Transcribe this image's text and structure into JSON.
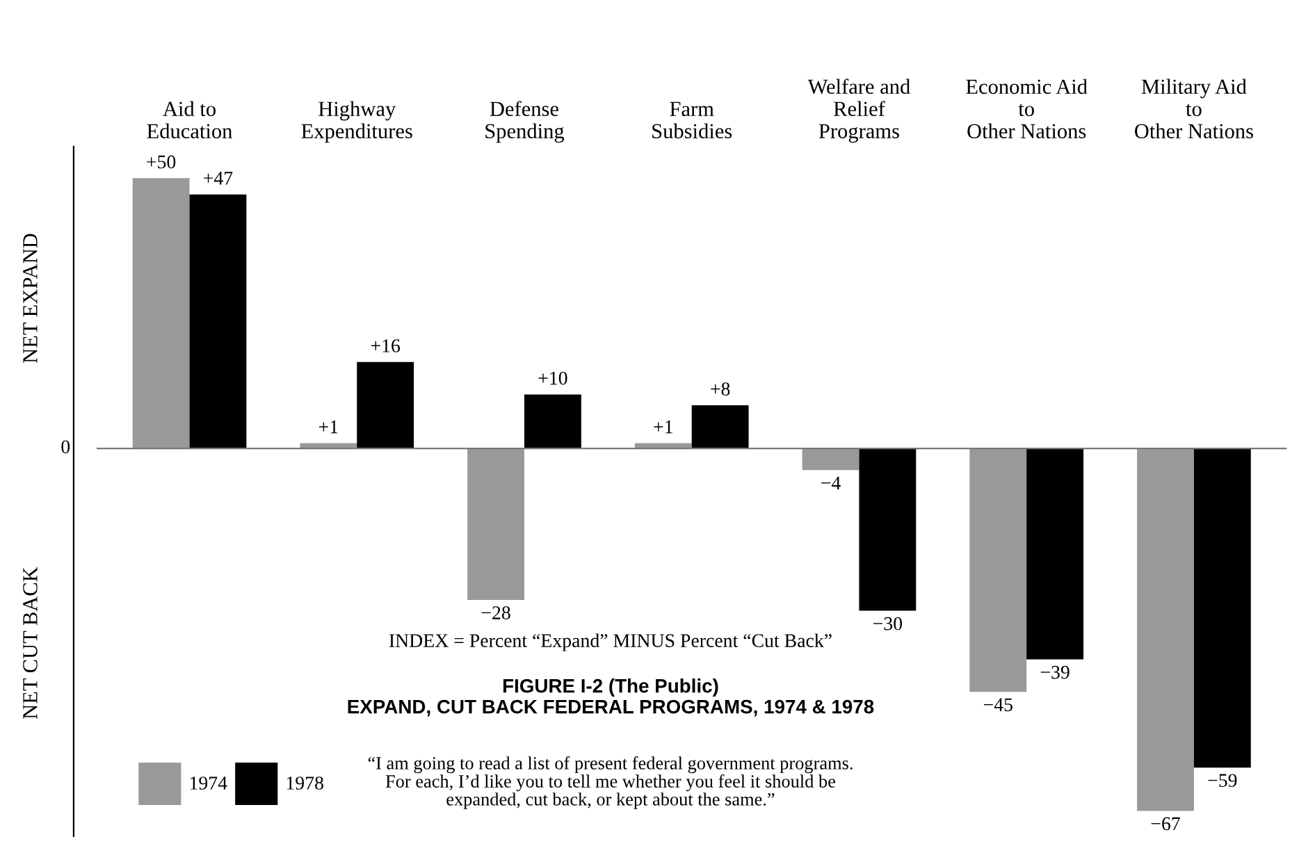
{
  "chart_data": {
    "type": "bar",
    "title": "FIGURE I-2 (The Public)\nEXPAND, CUT BACK FEDERAL PROGRAMS, 1974 & 1978",
    "ylabel": "NET EXPAND",
    "categories": [
      "Aid to\nEducation",
      "Highway\nExpenditures",
      "Defense\nSpending",
      "Farm\nSubsidies",
      "Welfare and\nRelief\nPrograms",
      "Economic Aid\nto\nOther Nations",
      "Military Aid\nto\nOther Nations"
    ],
    "series": [
      {
        "name": "1974",
        "color": "#999999",
        "values": [
          50,
          1,
          -28,
          1,
          -4,
          -45,
          -67
        ],
        "value_labels": [
          "+50",
          "+1",
          "−28",
          "+1",
          "−4",
          "−45",
          "−67"
        ]
      },
      {
        "name": "1978",
        "color": "#000000",
        "values": [
          47,
          16,
          10,
          8,
          -30,
          -39,
          -59
        ],
        "value_labels": [
          "+47",
          "+16",
          "+10",
          "+8",
          "−30",
          "−39",
          "−59"
        ]
      }
    ],
    "grid": false,
    "legend": "bottom left",
    "annotations": [
      "NET CUT BACK",
      "0",
      "INDEX = Percent “Expand” MINUS Percent “Cut Back”",
      "“I am going to read a list of present federal government programs.\nFor each, I’d like you to tell me whether you feel it should be\nexpanded, cut back, or kept about the same.”"
    ]
  }
}
